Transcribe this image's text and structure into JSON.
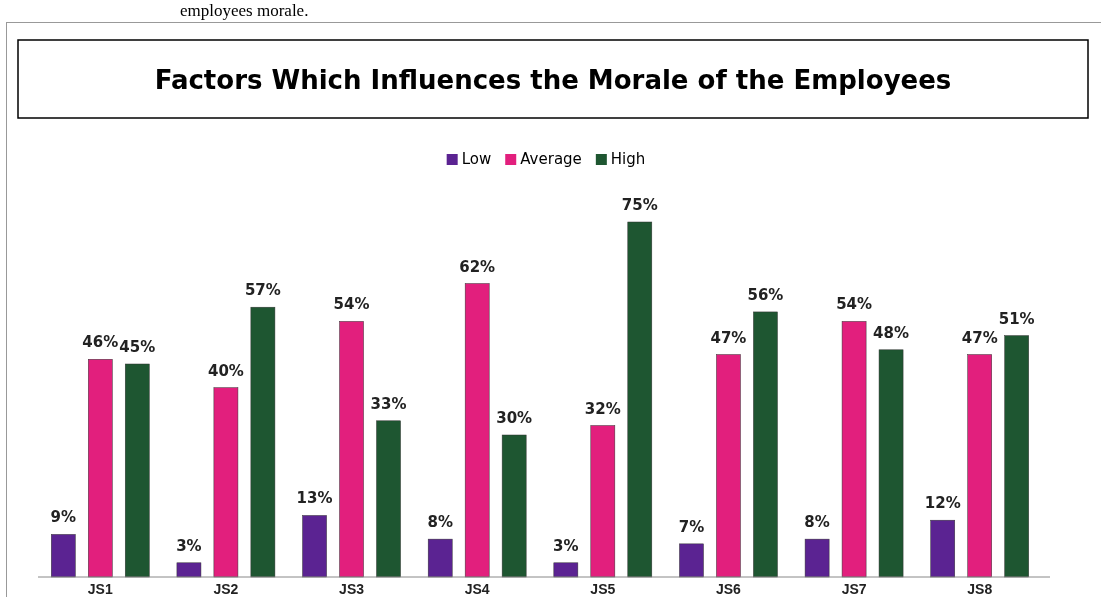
{
  "chart_data": {
    "type": "bar",
    "title": "Factors Which Influences the Morale of the Employees",
    "annotations": [
      "employees morale."
    ],
    "categories": [
      "JS1",
      "JS2",
      "JS3",
      "JS4",
      "JS5",
      "JS6",
      "JS7",
      "JS8"
    ],
    "series": [
      {
        "name": "Low",
        "color": "#5b2392",
        "values": [
          9,
          3,
          13,
          8,
          3,
          7,
          8,
          12
        ],
        "value_labels": [
          "9%",
          "3%",
          "13%",
          "8%",
          "3%",
          "7%",
          "8%",
          "12%"
        ]
      },
      {
        "name": "Average",
        "color": "#e21f7d",
        "values": [
          46,
          40,
          54,
          62,
          32,
          47,
          54,
          47
        ],
        "value_labels": [
          "46%",
          "40%",
          "54%",
          "62%",
          "32%",
          "47%",
          "54%",
          "47%"
        ]
      },
      {
        "name": "High",
        "color": "#1e5631",
        "values": [
          45,
          57,
          33,
          30,
          75,
          56,
          48,
          51
        ],
        "value_labels": [
          "45%",
          "57%",
          "33%",
          "30%",
          "75%",
          "56%",
          "48%",
          "51%"
        ]
      }
    ],
    "legend": "top"
  }
}
